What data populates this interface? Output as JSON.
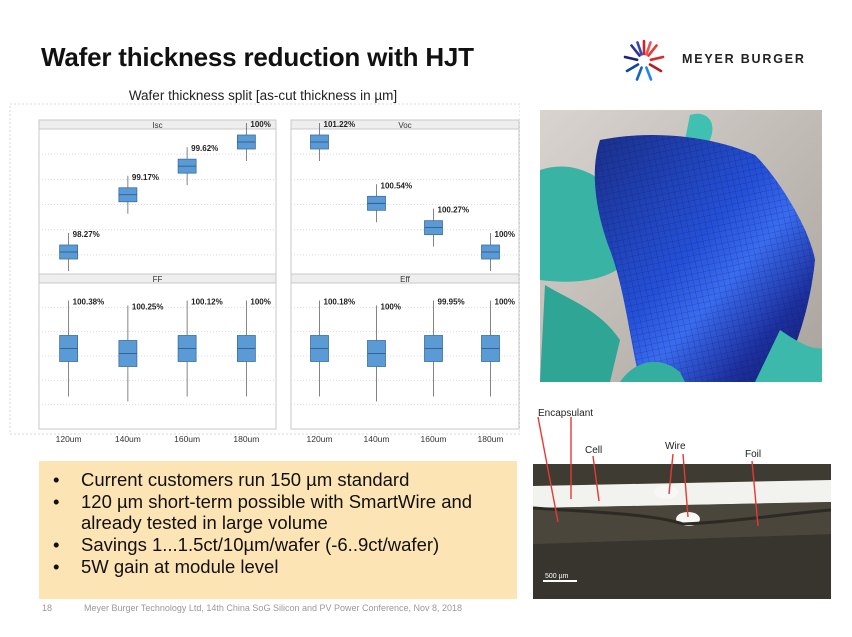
{
  "slide": {
    "title": "Wafer thickness reduction with HJT",
    "logo_text": "MEYER BURGER",
    "page_number": "18",
    "footer": "Meyer Burger Technology Ltd, 14th China SoG Silicon and PV Power Conference, Nov 8, 2018"
  },
  "bullets": [
    "Current customers run 150 µm standard",
    "120 µm short-term possible with SmartWire and already tested in large volume",
    "Savings 1...1.5ct/10µm/wafer (-6..9ct/wafer)",
    "5W gain at module level"
  ],
  "cross_section": {
    "labels": [
      "Encapsulant",
      "Cell",
      "Wire",
      "Foil"
    ],
    "scale_bar": "500 µm"
  },
  "chart_data": {
    "type": "boxplot",
    "title": "Wafer thickness split [as-cut thickness in µm]",
    "categories": [
      "120um",
      "140um",
      "160um",
      "180um"
    ],
    "panels": [
      {
        "name": "Isc",
        "labels": [
          "98.27%",
          "99.17%",
          "99.62%",
          "100%"
        ],
        "relative_percent": [
          98.27,
          99.17,
          99.62,
          100
        ]
      },
      {
        "name": "Voc",
        "labels": [
          "101.22%",
          "100.54%",
          "100.27%",
          "100%"
        ],
        "relative_percent": [
          101.22,
          100.54,
          100.27,
          100
        ]
      },
      {
        "name": "FF",
        "labels": [
          "100.38%",
          "100.25%",
          "100.12%",
          "100%"
        ],
        "relative_percent": [
          100.38,
          100.25,
          100.12,
          100
        ]
      },
      {
        "name": "Eff",
        "labels": [
          "100.18%",
          "100%",
          "99.95%",
          "100%"
        ],
        "relative_percent": [
          100.18,
          100,
          99.95,
          100
        ]
      }
    ],
    "box_color": "#5b9bd5",
    "grid": true
  }
}
